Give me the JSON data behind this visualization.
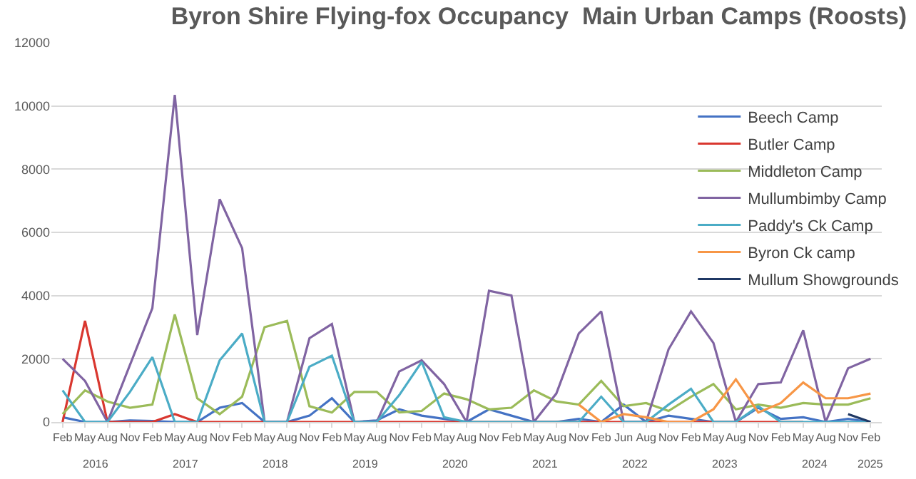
{
  "chart_data": {
    "type": "line",
    "title": "Byron Shire Flying-fox Occupancy  Main Urban Camps (Roosts)",
    "categories": [
      "Feb",
      "May",
      "Aug",
      "Nov",
      "Feb",
      "May",
      "Aug",
      "Nov",
      "Feb",
      "May",
      "Aug",
      "Nov",
      "Feb",
      "May",
      "Aug",
      "Nov",
      "Feb",
      "May",
      "Aug",
      "Nov",
      "Feb",
      "May",
      "Aug",
      "Nov",
      "Feb",
      "Jun",
      "Aug",
      "Nov",
      "Feb",
      "May",
      "Aug",
      "Nov",
      "Feb",
      "May",
      "Aug",
      "Nov",
      "Feb"
    ],
    "annotations": [
      "2016",
      "2017",
      "2018",
      "2019",
      "2020",
      "2021",
      "2022",
      "2023",
      "2024",
      "2025"
    ],
    "series": [
      {
        "name": "Beech Camp",
        "color": "#4472c4",
        "values": [
          150,
          0,
          0,
          50,
          30,
          0,
          0,
          450,
          600,
          0,
          0,
          200,
          750,
          0,
          50,
          400,
          200,
          100,
          0,
          400,
          200,
          0,
          0,
          100,
          0,
          550,
          0,
          200,
          100,
          0,
          0,
          450,
          100,
          150,
          0,
          100,
          0
        ]
      },
      {
        "name": "Butler Camp",
        "color": "#d9372f",
        "values": [
          0,
          3200,
          0,
          0,
          0,
          250,
          0,
          0,
          0,
          0,
          0,
          0,
          0,
          0,
          0,
          0,
          0,
          0,
          0,
          0,
          0,
          0,
          0,
          0,
          0,
          0,
          0,
          0,
          0,
          0,
          0,
          0,
          0,
          0,
          null,
          null,
          null
        ]
      },
      {
        "name": "Middleton Camp",
        "color": "#9bbb59",
        "values": [
          250,
          1000,
          650,
          450,
          550,
          3400,
          750,
          250,
          800,
          3000,
          3200,
          500,
          300,
          950,
          950,
          300,
          350,
          900,
          720,
          400,
          450,
          1000,
          650,
          550,
          1300,
          500,
          600,
          350,
          800,
          1200,
          400,
          550,
          450,
          600,
          550,
          550,
          750
        ]
      },
      {
        "name": "Mullumbimby Camp",
        "color": "#8064a2",
        "values": [
          2000,
          1300,
          0,
          1800,
          3600,
          10350,
          2750,
          7050,
          5500,
          0,
          0,
          2650,
          3100,
          0,
          0,
          1600,
          1950,
          1200,
          0,
          4150,
          4000,
          0,
          900,
          2800,
          3500,
          0,
          0,
          2300,
          3500,
          2500,
          0,
          1200,
          1250,
          2900,
          0,
          1700,
          2000
        ]
      },
      {
        "name": "Paddy's Ck Camp",
        "color": "#4bacc6",
        "values": [
          1000,
          0,
          0,
          950,
          2050,
          0,
          0,
          1950,
          2800,
          0,
          0,
          1750,
          2100,
          0,
          0,
          850,
          1900,
          150,
          0,
          0,
          0,
          0,
          0,
          0,
          800,
          0,
          0,
          550,
          1050,
          0,
          0,
          500,
          0,
          0,
          0,
          0,
          0
        ]
      },
      {
        "name": "Byron Ck camp",
        "color": "#f79646",
        "values": [
          null,
          null,
          null,
          null,
          null,
          null,
          null,
          null,
          null,
          null,
          null,
          null,
          null,
          null,
          null,
          null,
          null,
          null,
          null,
          null,
          null,
          null,
          null,
          550,
          0,
          250,
          150,
          0,
          0,
          400,
          1350,
          300,
          600,
          1250,
          750,
          750,
          900
        ]
      },
      {
        "name": "Mullum Showgrounds",
        "color": "#1f3864",
        "values": [
          null,
          null,
          null,
          null,
          null,
          null,
          null,
          null,
          null,
          null,
          null,
          null,
          null,
          null,
          null,
          null,
          null,
          null,
          null,
          null,
          null,
          null,
          null,
          null,
          null,
          null,
          null,
          null,
          null,
          null,
          null,
          null,
          null,
          null,
          null,
          250,
          0
        ]
      }
    ],
    "ylim": [
      0,
      12000
    ],
    "yticks": [
      0,
      2000,
      4000,
      6000,
      8000,
      10000,
      12000
    ],
    "grid": "y",
    "legend": "right",
    "marker": "none",
    "line_style": "solid"
  }
}
